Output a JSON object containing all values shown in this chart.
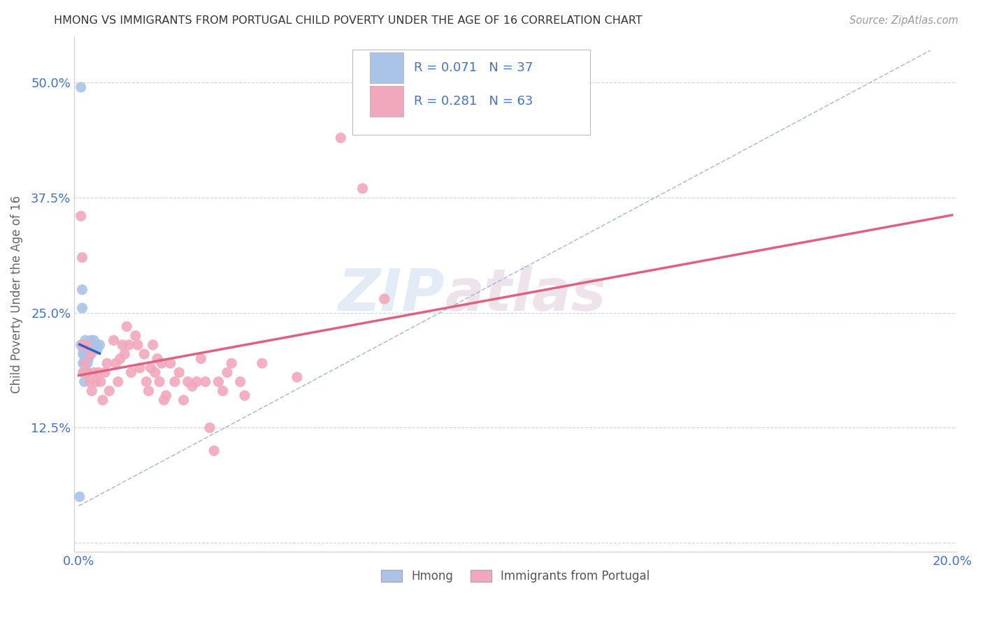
{
  "title": "HMONG VS IMMIGRANTS FROM PORTUGAL CHILD POVERTY UNDER THE AGE OF 16 CORRELATION CHART",
  "source": "Source: ZipAtlas.com",
  "ylabel": "Child Poverty Under the Age of 16",
  "xmax": 0.2,
  "ymax": 0.55,
  "x_ticks": [
    0.0,
    0.05,
    0.1,
    0.15,
    0.2
  ],
  "x_tick_labels": [
    "0.0%",
    "",
    "",
    "",
    "20.0%"
  ],
  "y_ticks": [
    0.0,
    0.125,
    0.25,
    0.375,
    0.5
  ],
  "y_tick_labels": [
    "",
    "12.5%",
    "25.0%",
    "37.5%",
    "50.0%"
  ],
  "hmong_R": 0.071,
  "hmong_N": 37,
  "portugal_R": 0.281,
  "portugal_N": 63,
  "hmong_color": "#aac4e8",
  "portugal_color": "#f2a8bc",
  "hmong_line_color": "#3060c0",
  "portugal_line_color": "#e06080",
  "diag_line_color": "#9ab0d0",
  "background_color": "#ffffff",
  "grid_color": "#c8d4e8",
  "hmong_x": [
    0.0005,
    0.0005,
    0.0008,
    0.0008,
    0.001,
    0.001,
    0.001,
    0.001,
    0.0012,
    0.0012,
    0.0012,
    0.0013,
    0.0013,
    0.0015,
    0.0015,
    0.0015,
    0.0015,
    0.0018,
    0.0018,
    0.0018,
    0.002,
    0.002,
    0.002,
    0.0022,
    0.0022,
    0.0025,
    0.0025,
    0.0028,
    0.0028,
    0.003,
    0.0032,
    0.0035,
    0.0038,
    0.004,
    0.0042,
    0.0048,
    0.0002
  ],
  "hmong_y": [
    0.495,
    0.215,
    0.275,
    0.255,
    0.21,
    0.205,
    0.195,
    0.185,
    0.215,
    0.205,
    0.195,
    0.185,
    0.175,
    0.22,
    0.21,
    0.2,
    0.185,
    0.205,
    0.195,
    0.185,
    0.215,
    0.205,
    0.195,
    0.21,
    0.2,
    0.215,
    0.205,
    0.22,
    0.21,
    0.215,
    0.21,
    0.22,
    0.215,
    0.215,
    0.21,
    0.215,
    0.05
  ],
  "portugal_x": [
    0.0005,
    0.0008,
    0.001,
    0.0012,
    0.0015,
    0.0018,
    0.002,
    0.0025,
    0.0028,
    0.003,
    0.0035,
    0.004,
    0.0045,
    0.005,
    0.0055,
    0.006,
    0.0065,
    0.007,
    0.008,
    0.0085,
    0.009,
    0.0095,
    0.01,
    0.0105,
    0.011,
    0.0115,
    0.012,
    0.013,
    0.0135,
    0.014,
    0.015,
    0.0155,
    0.016,
    0.0165,
    0.017,
    0.0175,
    0.018,
    0.0185,
    0.019,
    0.0195,
    0.02,
    0.021,
    0.022,
    0.023,
    0.024,
    0.025,
    0.026,
    0.027,
    0.028,
    0.029,
    0.03,
    0.031,
    0.032,
    0.033,
    0.034,
    0.035,
    0.037,
    0.038,
    0.042,
    0.05,
    0.06,
    0.065,
    0.07
  ],
  "portugal_y": [
    0.355,
    0.31,
    0.215,
    0.185,
    0.195,
    0.215,
    0.185,
    0.175,
    0.205,
    0.165,
    0.185,
    0.175,
    0.185,
    0.175,
    0.155,
    0.185,
    0.195,
    0.165,
    0.22,
    0.195,
    0.175,
    0.2,
    0.215,
    0.205,
    0.235,
    0.215,
    0.185,
    0.225,
    0.215,
    0.19,
    0.205,
    0.175,
    0.165,
    0.19,
    0.215,
    0.185,
    0.2,
    0.175,
    0.195,
    0.155,
    0.16,
    0.195,
    0.175,
    0.185,
    0.155,
    0.175,
    0.17,
    0.175,
    0.2,
    0.175,
    0.125,
    0.1,
    0.175,
    0.165,
    0.185,
    0.195,
    0.175,
    0.16,
    0.195,
    0.18,
    0.44,
    0.385,
    0.265
  ]
}
